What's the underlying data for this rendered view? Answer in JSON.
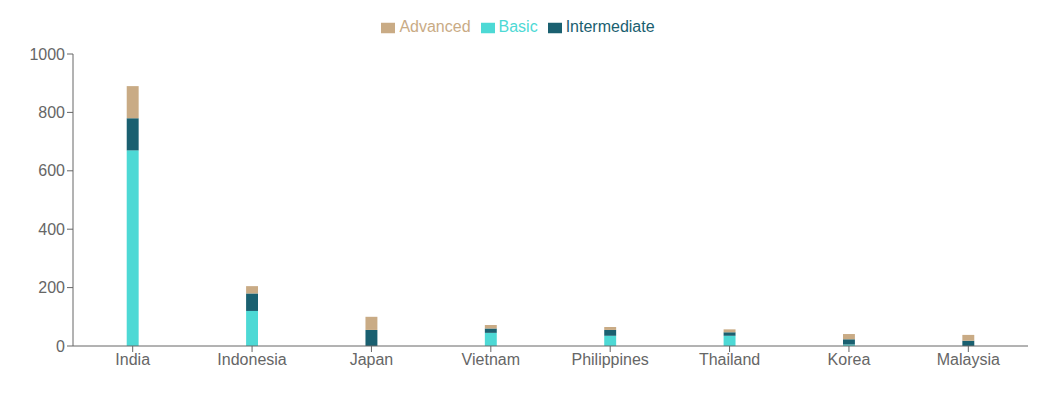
{
  "chart_data": {
    "type": "bar",
    "stacked": true,
    "categories": [
      "India",
      "Indonesia",
      "Japan",
      "Vietnam",
      "Philippines",
      "Thailand",
      "Korea",
      "Malaysia"
    ],
    "series": [
      {
        "name": "Basic",
        "color": "#4DD9D5",
        "values": [
          670,
          120,
          0,
          45,
          35,
          35,
          5,
          0
        ]
      },
      {
        "name": "Intermediate",
        "color": "#1A6070",
        "values": [
          110,
          60,
          55,
          15,
          20,
          12,
          18,
          18
        ]
      },
      {
        "name": "Advanced",
        "color": "#C9AB85",
        "values": [
          110,
          25,
          45,
          12,
          10,
          10,
          18,
          20
        ]
      }
    ],
    "ylim": [
      0,
      1000
    ],
    "yticks": [
      0,
      200,
      400,
      600,
      800,
      1000
    ],
    "grid": false,
    "legend": "top"
  }
}
